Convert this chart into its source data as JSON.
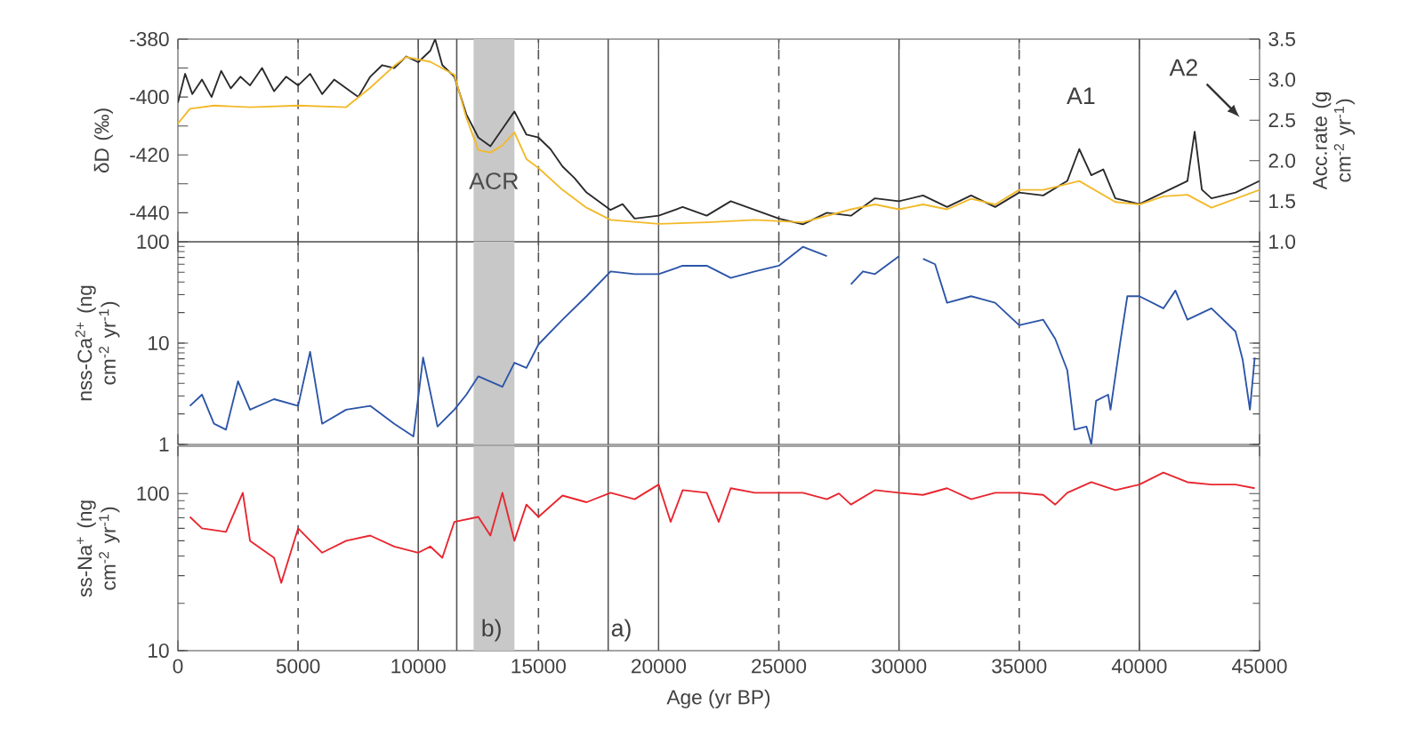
{
  "chart_data": [
    {
      "type": "line",
      "ylabel": "δD (‰)",
      "y2label": "Acc.rate (g cm$^{-2}$ yr$^{-1}$)",
      "xlim": [
        0,
        45000
      ],
      "xticks": [
        0,
        5000,
        10000,
        15000,
        20000,
        25000,
        30000,
        35000,
        40000,
        45000
      ],
      "ylim": [
        -450,
        -380
      ],
      "yticks": [
        -380,
        {
          "value": -390,
          "label": null
        },
        -400,
        {
          "value": -410,
          "label": null
        },
        -420,
        {
          "value": -430,
          "label": null
        },
        -440
      ],
      "y2lim": [
        1.0,
        3.5
      ],
      "y2ticks": [
        {
          "value": 1.0,
          "label": "1.0"
        },
        {
          "value": 1.5,
          "label": "1.5"
        },
        {
          "value": 2.0,
          "label": "2.0"
        },
        {
          "value": 2.5,
          "label": "2.5"
        },
        {
          "value": 3.0,
          "label": "3.0"
        },
        {
          "value": 3.5,
          "label": "3.5"
        }
      ],
      "tick_labels": "y",
      "series": [
        {
          "color": "#2a2a2a",
          "x": [
            0,
            300,
            600,
            1000,
            1400,
            1800,
            2200,
            2600,
            3000,
            3500,
            4000,
            4500,
            5000,
            5500,
            6000,
            6500,
            7000,
            7500,
            8000,
            8500,
            9000,
            9500,
            10000,
            10500,
            10700,
            11000,
            11500,
            12000,
            12500,
            13000,
            13500,
            14000,
            14500,
            15000,
            15500,
            16000,
            16500,
            17000,
            17500,
            18000,
            18500,
            19000,
            20000,
            21000,
            22000,
            23000,
            24000,
            25000,
            26000,
            27000,
            28000,
            29000,
            30000,
            31000,
            32000,
            33000,
            34000,
            35000,
            36000,
            37000,
            37500,
            38000,
            38500,
            39000,
            40000,
            41000,
            42000,
            42300,
            42600,
            43000,
            44000,
            45000
          ],
          "values": [
            -402,
            -392,
            -399,
            -394,
            -400,
            -391,
            -397,
            -393,
            -396,
            -390,
            -398,
            -393,
            -396,
            -392,
            -399,
            -394,
            -397,
            -400,
            -393,
            -389,
            -390,
            -386,
            -388,
            -384,
            -380,
            -389,
            -393,
            -406,
            -414,
            -417,
            -411,
            -405,
            -413,
            -414,
            -418,
            -424,
            -428,
            -433,
            -436,
            -439,
            -437,
            -442,
            -441,
            -438,
            -441,
            -436,
            -439,
            -442,
            -444,
            -440,
            -441,
            -435,
            -436,
            -434,
            -438,
            -434,
            -438,
            -433,
            -434,
            -429,
            -418,
            -427,
            -425,
            -435,
            -437,
            -433,
            -429,
            -412,
            -432,
            -435,
            -433,
            -429
          ]
        },
        {
          "color": "#f2b92a",
          "axis": "y2",
          "x": [
            0,
            500,
            1500,
            3000,
            5000,
            7000,
            8000,
            9000,
            9500,
            10500,
            11500,
            12000,
            12500,
            13000,
            13500,
            14000,
            14500,
            15000,
            16000,
            17000,
            18000,
            20000,
            22000,
            24000,
            26000,
            28000,
            29000,
            30000,
            31000,
            32000,
            33000,
            34000,
            35000,
            36000,
            37500,
            39000,
            40000,
            41000,
            42000,
            43000,
            45000
          ],
          "values": [
            2.46,
            2.64,
            2.68,
            2.66,
            2.68,
            2.66,
            2.9,
            3.17,
            3.28,
            3.22,
            3.06,
            2.53,
            2.13,
            2.1,
            2.19,
            2.35,
            2.02,
            1.91,
            1.64,
            1.42,
            1.27,
            1.22,
            1.24,
            1.27,
            1.24,
            1.4,
            1.46,
            1.4,
            1.46,
            1.4,
            1.53,
            1.46,
            1.64,
            1.64,
            1.75,
            1.49,
            1.46,
            1.56,
            1.58,
            1.42,
            1.64
          ]
        }
      ],
      "bands": [
        {
          "axis": "x",
          "from": 12300,
          "to": 14000,
          "label": "ACR",
          "color": "#c8c8c8"
        }
      ],
      "ref_lines": [
        {
          "axis": "x",
          "value": 5000,
          "line_style": "dashed",
          "color": "#555555"
        },
        {
          "axis": "x",
          "value": 10000,
          "line_style": "solid",
          "color": "#555555"
        },
        {
          "axis": "x",
          "value": 11600,
          "line_style": "solid",
          "color": "#555555"
        },
        {
          "axis": "x",
          "value": 15000,
          "line_style": "dashed",
          "color": "#555555"
        },
        {
          "axis": "x",
          "value": 17900,
          "line_style": "solid",
          "color": "#555555"
        },
        {
          "axis": "x",
          "value": 20000,
          "line_style": "solid",
          "color": "#555555"
        },
        {
          "axis": "x",
          "value": 25000,
          "line_style": "dashed",
          "color": "#555555"
        },
        {
          "axis": "x",
          "value": 30000,
          "line_style": "solid",
          "color": "#555555"
        },
        {
          "axis": "x",
          "value": 35000,
          "line_style": "dashed",
          "color": "#555555"
        },
        {
          "axis": "x",
          "value": 40000,
          "line_style": "solid",
          "color": "#555555"
        }
      ],
      "annotations": [
        "A1",
        "A2"
      ]
    },
    {
      "type": "line",
      "ylabel": "nss-Ca$^{2+}$ (ng cm$^{-2}$ yr$^{-1}$)",
      "log": "y",
      "xlim": [
        0,
        45000
      ],
      "xticks": [
        0,
        5000,
        10000,
        15000,
        20000,
        25000,
        30000,
        35000,
        40000,
        45000
      ],
      "ylim": [
        1,
        100
      ],
      "yticks": [
        1,
        10,
        100
      ],
      "tick_labels": "y",
      "series": [
        {
          "color": "#2c55a8",
          "x": [
            500,
            1000,
            1500,
            2000,
            2500,
            3000,
            4000,
            5000,
            5500,
            6000,
            7000,
            8000,
            9000,
            9800,
            10200,
            10800,
            11500,
            12000,
            12500,
            13500,
            14000,
            14500,
            15000,
            16000,
            17000,
            18000,
            19000,
            20000,
            21000,
            22000,
            23000,
            24000,
            25000,
            26000,
            27000,
            27500,
            28000,
            28500,
            29000,
            30000,
            30300,
            31000,
            31500,
            32000,
            33000,
            33500,
            34000,
            35000,
            36000,
            36500,
            37000,
            37300,
            37800,
            38000,
            38200,
            38700,
            38800,
            39200,
            39500,
            40000,
            41000,
            41500,
            42000,
            43000,
            44000,
            44300,
            44600,
            44800
          ],
          "values": [
            2.4,
            3.1,
            1.6,
            1.4,
            4.2,
            2.2,
            2.8,
            2.4,
            8.2,
            1.6,
            2.2,
            2.4,
            1.6,
            1.2,
            7.2,
            1.5,
            2.2,
            3.1,
            4.7,
            3.7,
            6.4,
            5.7,
            9.7,
            17,
            29,
            51,
            48,
            48,
            58,
            58,
            44,
            51,
            58,
            89,
            72,
            null,
            38,
            51,
            48,
            72,
            null,
            68,
            60,
            25,
            29,
            27,
            25,
            15,
            17,
            11,
            5.4,
            1.4,
            1.5,
            1.0,
            2.7,
            3.1,
            2.2,
            10,
            29,
            29,
            22,
            33,
            17,
            22,
            13,
            6.8,
            2.2,
            7.2
          ]
        }
      ],
      "bands": [
        {
          "axis": "x",
          "from": 12300,
          "to": 14000,
          "color": "#c8c8c8"
        }
      ],
      "ref_lines": [
        {
          "axis": "x",
          "value": 5000,
          "line_style": "dashed",
          "color": "#555555"
        },
        {
          "axis": "x",
          "value": 10000,
          "line_style": "solid",
          "color": "#555555"
        },
        {
          "axis": "x",
          "value": 11600,
          "line_style": "solid",
          "color": "#555555"
        },
        {
          "axis": "x",
          "value": 15000,
          "line_style": "dashed",
          "color": "#555555"
        },
        {
          "axis": "x",
          "value": 17900,
          "line_style": "solid",
          "color": "#555555"
        },
        {
          "axis": "x",
          "value": 20000,
          "line_style": "solid",
          "color": "#555555"
        },
        {
          "axis": "x",
          "value": 25000,
          "line_style": "dashed",
          "color": "#555555"
        },
        {
          "axis": "x",
          "value": 30000,
          "line_style": "solid",
          "color": "#555555"
        },
        {
          "axis": "x",
          "value": 35000,
          "line_style": "dashed",
          "color": "#555555"
        },
        {
          "axis": "x",
          "value": 40000,
          "line_style": "solid",
          "color": "#555555"
        }
      ]
    },
    {
      "type": "line",
      "ylabel": "ss-Na$^{+}$ (ng cm$^{-2}$ yr$^{-1}$)",
      "xlabel": "Age (yr BP)",
      "log": "y",
      "xlim": [
        0,
        45000
      ],
      "xticks": [
        0,
        5000,
        10000,
        15000,
        20000,
        25000,
        30000,
        35000,
        40000,
        45000
      ],
      "ylim": [
        10,
        200
      ],
      "yticks": [
        10,
        100
      ],
      "series": [
        {
          "color": "#e8262f",
          "x": [
            500,
            1000,
            2000,
            2700,
            3000,
            4000,
            4300,
            5000,
            6000,
            7000,
            8000,
            9000,
            10000,
            10500,
            11000,
            11500,
            12500,
            13000,
            13500,
            14000,
            14500,
            15000,
            16000,
            17000,
            18000,
            19000,
            20000,
            20500,
            21000,
            22000,
            22500,
            23000,
            24000,
            25000,
            26000,
            27000,
            27500,
            28000,
            29000,
            30000,
            31000,
            32000,
            33000,
            34000,
            35000,
            36000,
            36500,
            37000,
            38000,
            39000,
            40000,
            41000,
            42000,
            43000,
            44000,
            44800
          ],
          "values": [
            71,
            60,
            57,
            101,
            50,
            39,
            27,
            60,
            42,
            50,
            54,
            46,
            42,
            46,
            39,
            66,
            71,
            54,
            101,
            50,
            85,
            71,
            97,
            88,
            101,
            92,
            114,
            66,
            105,
            101,
            66,
            108,
            101,
            101,
            101,
            92,
            100,
            85,
            105,
            101,
            98,
            108,
            92,
            101,
            101,
            98,
            85,
            101,
            118,
            105,
            114,
            136,
            118,
            114,
            114,
            108
          ]
        }
      ],
      "bands": [
        {
          "axis": "x",
          "from": 12300,
          "to": 14000,
          "color": "#c8c8c8"
        }
      ],
      "ref_lines": [
        {
          "axis": "x",
          "value": 5000,
          "line_style": "dashed",
          "color": "#555555"
        },
        {
          "axis": "x",
          "value": 10000,
          "line_style": "solid",
          "color": "#555555"
        },
        {
          "axis": "x",
          "value": 11600,
          "line_style": "solid",
          "color": "#555555"
        },
        {
          "axis": "x",
          "value": 15000,
          "line_style": "dashed",
          "color": "#555555"
        },
        {
          "axis": "x",
          "value": 17900,
          "line_style": "solid",
          "color": "#555555"
        },
        {
          "axis": "x",
          "value": 20000,
          "line_style": "solid",
          "color": "#555555"
        },
        {
          "axis": "x",
          "value": 25000,
          "line_style": "dashed",
          "color": "#555555"
        },
        {
          "axis": "x",
          "value": 30000,
          "line_style": "solid",
          "color": "#555555"
        },
        {
          "axis": "x",
          "value": 35000,
          "line_style": "dashed",
          "color": "#555555"
        },
        {
          "axis": "x",
          "value": 40000,
          "line_style": "solid",
          "color": "#555555"
        }
      ],
      "annotations": [
        "b)",
        "a)"
      ]
    }
  ]
}
